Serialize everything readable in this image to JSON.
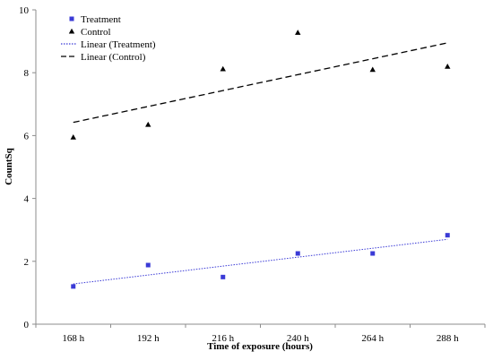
{
  "chart_data": {
    "type": "scatter",
    "title": "",
    "xlabel": "Time of exposure (hours)",
    "ylabel": "CountSq",
    "ylim": [
      0,
      10
    ],
    "yticks": [
      "0",
      "2",
      "4",
      "6",
      "8",
      "10"
    ],
    "categories": [
      "168 h",
      "192 h",
      "216 h",
      "240 h",
      "264 h",
      "288 h"
    ],
    "series": [
      {
        "name": "Treatment",
        "marker": "square",
        "color": "#3a3ad6",
        "values": [
          1.2,
          1.88,
          1.5,
          2.25,
          2.25,
          2.83
        ]
      },
      {
        "name": "Control",
        "marker": "triangle",
        "color": "#000000",
        "values": [
          5.95,
          6.35,
          8.12,
          9.28,
          8.1,
          8.2
        ]
      }
    ],
    "trendlines": [
      {
        "name": "Linear (Treatment)",
        "style": "dotted",
        "color": "#3a3ad6",
        "start": 1.28,
        "end": 2.7
      },
      {
        "name": "Linear (Control)",
        "style": "dashed",
        "color": "#000000",
        "start": 6.42,
        "end": 8.95
      }
    ],
    "legend_position": "top-left",
    "grid": false
  }
}
